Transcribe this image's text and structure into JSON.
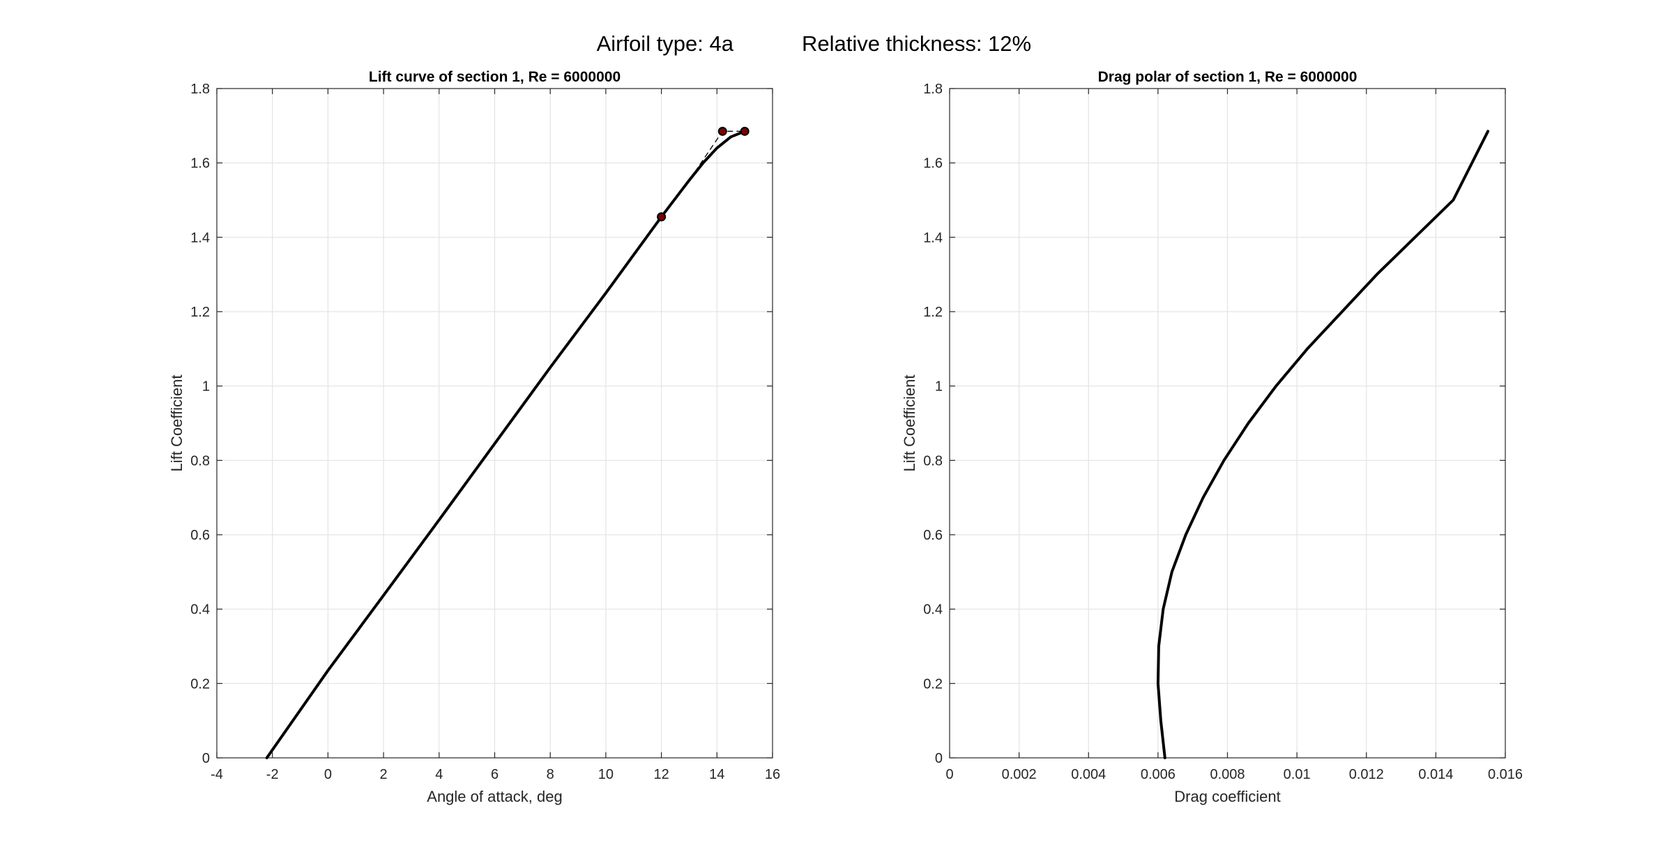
{
  "figure": {
    "suptitle_left": "Airfoil type: 4a",
    "suptitle_right": "Relative thickness: 12%"
  },
  "chart_data": [
    {
      "type": "line",
      "title": "Lift curve of section 1, Re = 6000000",
      "xlabel": "Angle of attack, deg",
      "ylabel": "Lift Coefficient",
      "xlim": [
        -4,
        16
      ],
      "ylim": [
        0,
        1.8
      ],
      "xticks": [
        "-4",
        "-2",
        "0",
        "2",
        "4",
        "6",
        "8",
        "10",
        "12",
        "14",
        "16"
      ],
      "yticks": [
        "0",
        "0.2",
        "0.4",
        "0.6",
        "0.8",
        "1",
        "1.2",
        "1.4",
        "1.6",
        "1.8"
      ],
      "grid": true,
      "series": [
        {
          "style": "solid",
          "x": [
            -2.2,
            0,
            2,
            4,
            6,
            8,
            10,
            12,
            13,
            13.5,
            14,
            14.5,
            15
          ],
          "y": [
            0,
            0.235,
            0.437,
            0.64,
            0.845,
            1.05,
            1.25,
            1.455,
            1.553,
            1.6,
            1.64,
            1.67,
            1.685
          ]
        },
        {
          "style": "dashed",
          "x": [
            13.2,
            14.2,
            15.0
          ],
          "y": [
            1.575,
            1.685,
            1.685
          ]
        },
        {
          "style": "markers",
          "x": [
            12,
            14.2,
            15
          ],
          "y": [
            1.455,
            1.685,
            1.685
          ]
        }
      ]
    },
    {
      "type": "line",
      "title": "Drag polar of section 1, Re = 6000000",
      "xlabel": "Drag coefficient",
      "ylabel": "Lift Coefficient",
      "xlim": [
        0,
        0.016
      ],
      "ylim": [
        0,
        1.8
      ],
      "xticks": [
        "0",
        "0.002",
        "0.004",
        "0.006",
        "0.008",
        "0.01",
        "0.012",
        "0.014",
        "0.016"
      ],
      "yticks": [
        "0",
        "0.2",
        "0.4",
        "0.6",
        "0.8",
        "1",
        "1.2",
        "1.4",
        "1.6",
        "1.8"
      ],
      "grid": true,
      "series": [
        {
          "style": "solid",
          "x": [
            0.0062,
            0.00608,
            0.006,
            0.00602,
            0.00615,
            0.0064,
            0.0068,
            0.0073,
            0.0079,
            0.0086,
            0.0094,
            0.0103,
            0.0113,
            0.0123,
            0.0134,
            0.0145,
            0.0155
          ],
          "y": [
            0,
            0.1,
            0.2,
            0.3,
            0.4,
            0.5,
            0.6,
            0.7,
            0.8,
            0.9,
            1.0,
            1.1,
            1.2,
            1.3,
            1.4,
            1.5,
            1.685
          ]
        }
      ]
    }
  ]
}
